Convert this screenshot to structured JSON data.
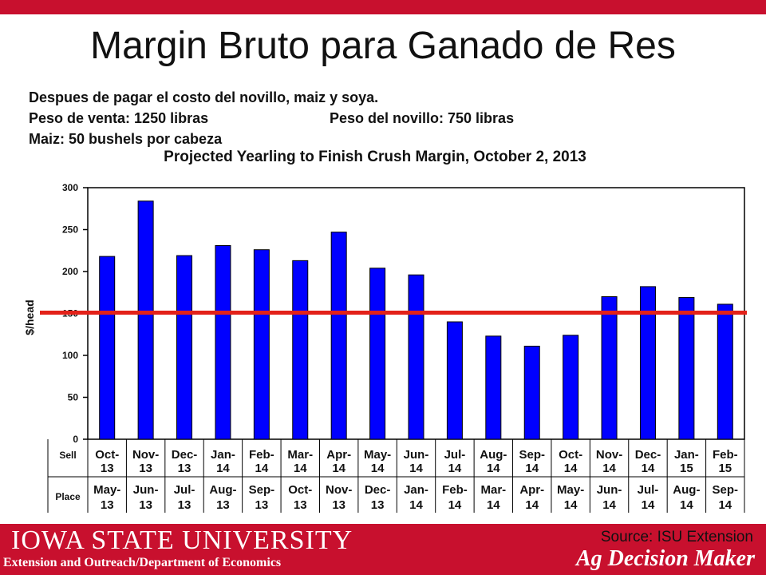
{
  "slide": {
    "title": "Margin Bruto para Ganado de Res",
    "line1": "Despues de pagar el costo del novillo, maiz y soya.",
    "line2a": "Peso de venta:  1250 libras",
    "line2b": "Peso del novillo:  750 libras",
    "line3": "Maiz:  50 bushels por cabeza"
  },
  "chart_data": {
    "type": "bar",
    "title": "Projected Yearling to Finish Crush Margin, October 2, 2013",
    "ylabel": "$/head",
    "ylim": [
      0,
      300
    ],
    "yticks": [
      0,
      50,
      100,
      150,
      200,
      250,
      300
    ],
    "grid": false,
    "row_labels": [
      "Sell",
      "Place"
    ],
    "sell": [
      [
        "Oct-",
        "13"
      ],
      [
        "Nov-",
        "13"
      ],
      [
        "Dec-",
        "13"
      ],
      [
        "Jan-",
        "14"
      ],
      [
        "Feb-",
        "14"
      ],
      [
        "Mar-",
        "14"
      ],
      [
        "Apr-",
        "14"
      ],
      [
        "May-",
        "14"
      ],
      [
        "Jun-",
        "14"
      ],
      [
        "Jul-",
        "14"
      ],
      [
        "Aug-",
        "14"
      ],
      [
        "Sep-",
        "14"
      ],
      [
        "Oct-",
        "14"
      ],
      [
        "Nov-",
        "14"
      ],
      [
        "Dec-",
        "14"
      ],
      [
        "Jan-",
        "15"
      ],
      [
        "Feb-",
        "15"
      ]
    ],
    "place": [
      [
        "May-",
        "13"
      ],
      [
        "Jun-",
        "13"
      ],
      [
        "Jul-",
        "13"
      ],
      [
        "Aug-",
        "13"
      ],
      [
        "Sep-",
        "13"
      ],
      [
        "Oct-",
        "13"
      ],
      [
        "Nov-",
        "13"
      ],
      [
        "Dec-",
        "13"
      ],
      [
        "Jan-",
        "14"
      ],
      [
        "Feb-",
        "14"
      ],
      [
        "Mar-",
        "14"
      ],
      [
        "Apr-",
        "14"
      ],
      [
        "May-",
        "14"
      ],
      [
        "Jun-",
        "14"
      ],
      [
        "Jul-",
        "14"
      ],
      [
        "Aug-",
        "14"
      ],
      [
        "Sep-",
        "14"
      ]
    ],
    "values": [
      218,
      284,
      219,
      231,
      226,
      213,
      247,
      204,
      196,
      140,
      123,
      111,
      124,
      170,
      182,
      169,
      161
    ],
    "reference_line": 151,
    "bar_color": "#0000ff",
    "reference_color": "#e32119"
  },
  "footer": {
    "university": "IOWA STATE UNIVERSITY",
    "department": "Extension and Outreach/Department  of Economics",
    "source": "Source: ISU Extension",
    "brand": "Ag Decision Maker"
  },
  "colors": {
    "accent": "#c8102e"
  }
}
